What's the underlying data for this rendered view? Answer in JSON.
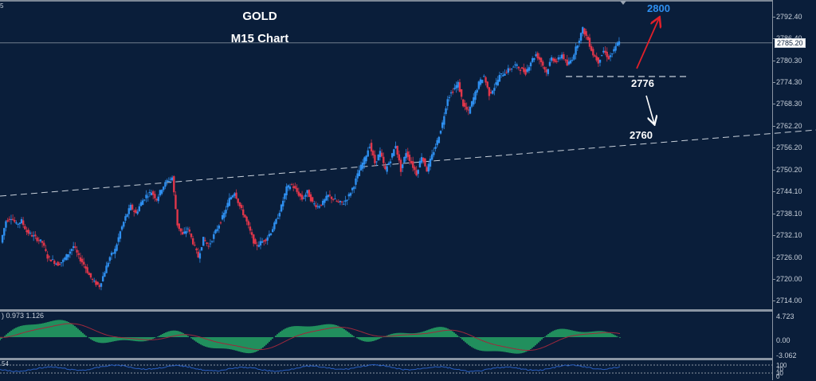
{
  "chart_data": {
    "type": "candlestick",
    "title": "GOLD",
    "subtitle": "M15 Chart",
    "symbol": "GOLD",
    "timeframe": "M15",
    "price_axis": {
      "ticks": [
        "2792.40",
        "2786.40",
        "2780.30",
        "2774.30",
        "2768.30",
        "2762.20",
        "2756.20",
        "2750.20",
        "2744.10",
        "2738.10",
        "2732.10",
        "2726.00",
        "2720.00",
        "2714.00"
      ],
      "ylim": [
        2711,
        2797
      ],
      "current_price": "2785.20"
    },
    "price_path": [
      2730,
      2736,
      2737,
      2735,
      2736,
      2733,
      2732,
      2731,
      2730,
      2726,
      2725,
      2724,
      2725,
      2727,
      2729,
      2726,
      2724,
      2721,
      2719,
      2718,
      2722,
      2726,
      2728,
      2733,
      2737,
      2740,
      2738,
      2741,
      2743,
      2744,
      2742,
      2745,
      2747,
      2748,
      2735,
      2732,
      2734,
      2730,
      2726,
      2731,
      2729,
      2732,
      2735,
      2738,
      2742,
      2744,
      2740,
      2737,
      2733,
      2729,
      2730,
      2731,
      2733,
      2736,
      2740,
      2745,
      2746,
      2744,
      2742,
      2744,
      2741,
      2740,
      2741,
      2743,
      2742,
      2741,
      2741,
      2743,
      2746,
      2750,
      2753,
      2757,
      2752,
      2755,
      2750,
      2753,
      2757,
      2750,
      2755,
      2752,
      2749,
      2754,
      2750,
      2754,
      2758,
      2763,
      2770,
      2772,
      2774,
      2768,
      2766,
      2770,
      2774,
      2776,
      2771,
      2773,
      2776,
      2777,
      2778,
      2779,
      2778,
      2777,
      2780,
      2782,
      2780,
      2777,
      2781,
      2780,
      2782,
      2779,
      2781,
      2785,
      2789,
      2786,
      2782,
      2780,
      2783,
      2781,
      2783,
      2786
    ],
    "levels": [
      {
        "name": "resistance_target",
        "value": 2800,
        "label": "2800",
        "color": "#2e8ff0"
      },
      {
        "name": "support",
        "value": 2776,
        "label": "2776",
        "color": "#ffffff"
      },
      {
        "name": "trendline_support",
        "value": 2760,
        "label": "2760",
        "color": "#ffffff"
      }
    ],
    "indicator_macd": {
      "label": ") 0.973 1.126",
      "ticks": [
        "4.723",
        "0.00",
        "-3.062"
      ],
      "histogram_color": "#2ecc71",
      "signal_color": "#a0283c"
    },
    "indicator_rsi": {
      "label": "54",
      "ticks": [
        "100",
        "70",
        "30",
        "0"
      ],
      "line_color": "#2a5fc0"
    },
    "colors": {
      "background": "#0a1e3a",
      "bull": "#2e8ff0",
      "bear": "#e0364a"
    }
  },
  "header": {
    "corner_text": "5",
    "title": "GOLD",
    "subtitle": "M15 Chart"
  },
  "annotations": {
    "target_up": "2800",
    "support_1": "2776",
    "support_2": "2760"
  }
}
